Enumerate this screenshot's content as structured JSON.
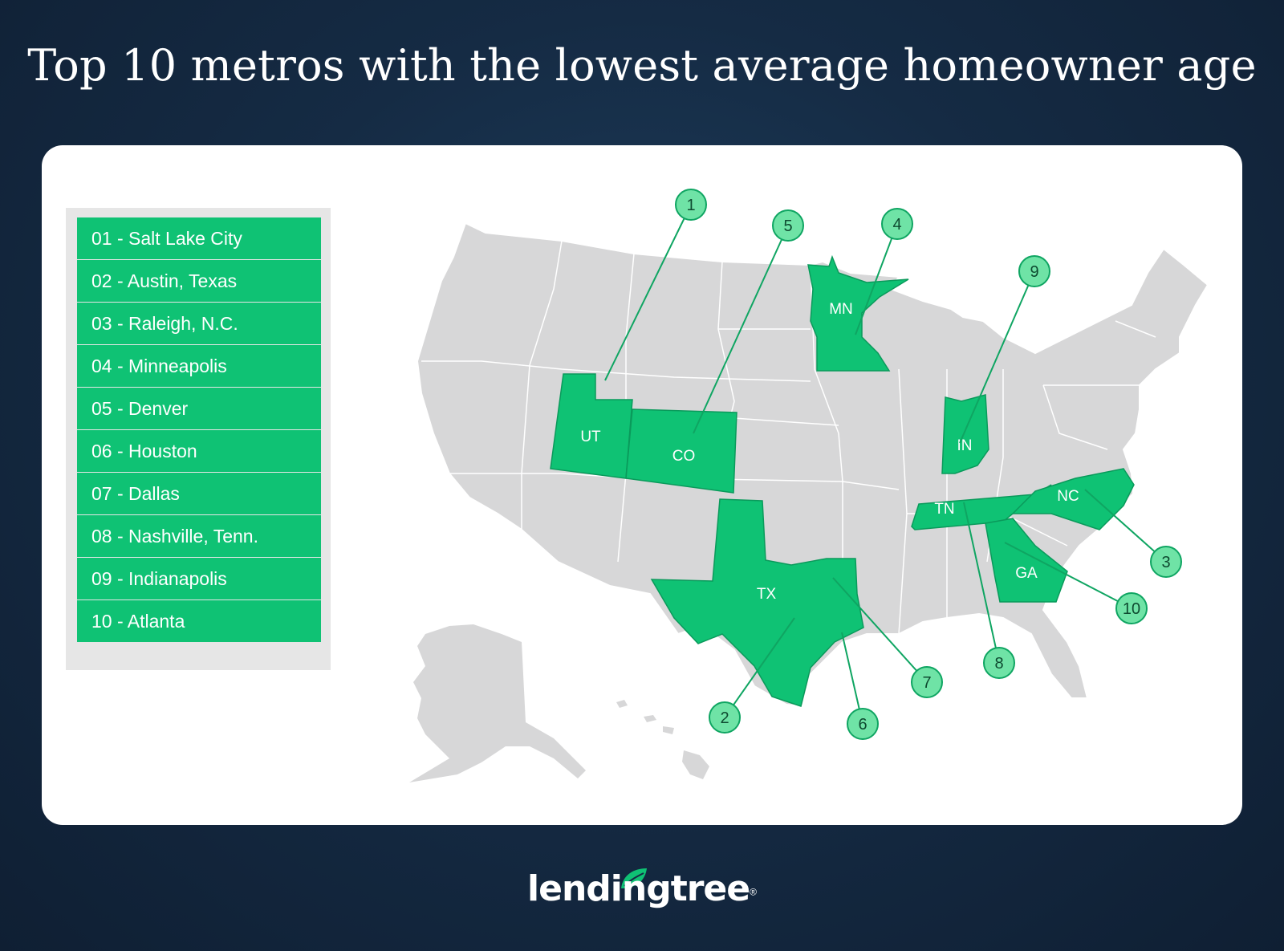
{
  "title": "Top 10 metros with the lowest average homeowner age",
  "legend": [
    "01 - Salt Lake City",
    "02 - Austin, Texas",
    "03 - Raleigh, N.C.",
    "04 - Minneapolis",
    "05 - Denver",
    "06 - Houston",
    "07 - Dallas",
    "08 - Nashville, Tenn.",
    "09 - Indianapolis",
    "10 - Atlanta"
  ],
  "states": {
    "UT": "UT",
    "CO": "CO",
    "MN": "MN",
    "IN": "IN",
    "TN": "TN",
    "NC": "NC",
    "GA": "GA",
    "TX": "TX"
  },
  "markers": [
    "1",
    "2",
    "3",
    "4",
    "5",
    "6",
    "7",
    "8",
    "9",
    "10"
  ],
  "colors": {
    "highlight": "#0fc274",
    "marker_fill": "#6fe3a6",
    "base_state": "#d7d7d8",
    "background": "#152b44"
  },
  "logo": {
    "text": "lendingtree",
    "mark": "®"
  }
}
